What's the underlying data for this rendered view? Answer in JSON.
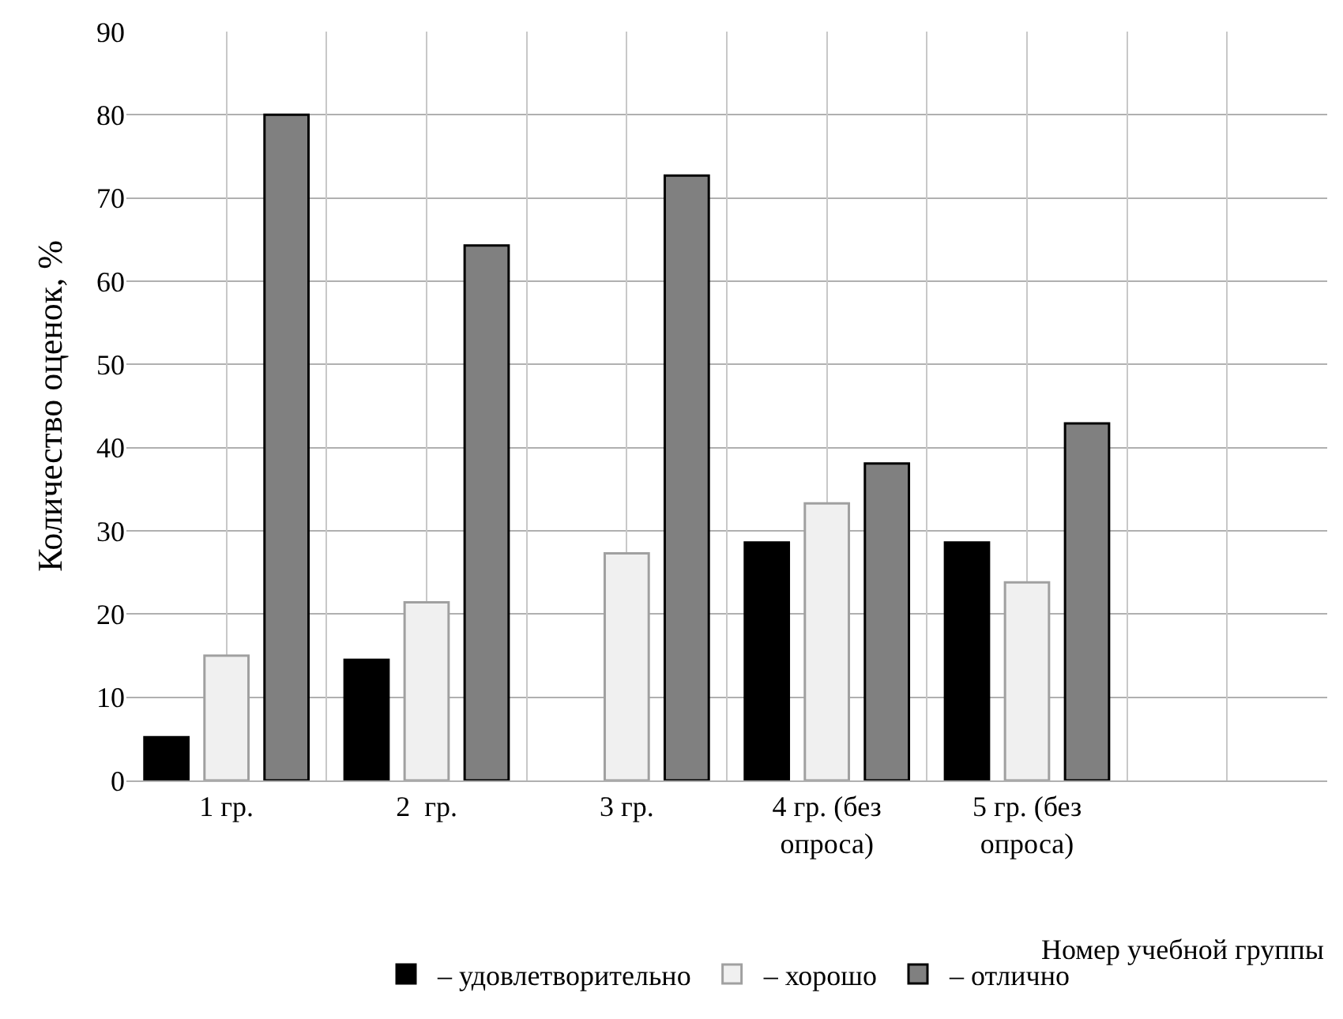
{
  "chart_data": {
    "type": "bar",
    "xlabel": "Номер учебной группы",
    "ylabel": "Количество оценок, %",
    "categories": [
      "1 гр.",
      "2  гр.",
      "3 гр.",
      "4 гр. (без\nопроса)",
      "5 гр. (без\nопроса)",
      null
    ],
    "series": [
      {
        "name": "– удовлетворительно",
        "color": "#000000",
        "values": [
          5.2,
          14.5,
          null,
          28.6,
          28.6,
          null
        ]
      },
      {
        "name": "– хорошо",
        "color": "#f0f0f0",
        "values": [
          15.0,
          21.4,
          27.3,
          33.3,
          23.8,
          null
        ]
      },
      {
        "name": "– отлично",
        "color": "#808080",
        "values": [
          80.0,
          64.3,
          72.7,
          38.1,
          42.9,
          null
        ]
      }
    ],
    "ylim": [
      0,
      90
    ],
    "yticks": [
      0,
      10,
      20,
      30,
      40,
      50,
      60,
      70,
      80,
      90
    ],
    "grid": true,
    "legend": "bottom"
  }
}
